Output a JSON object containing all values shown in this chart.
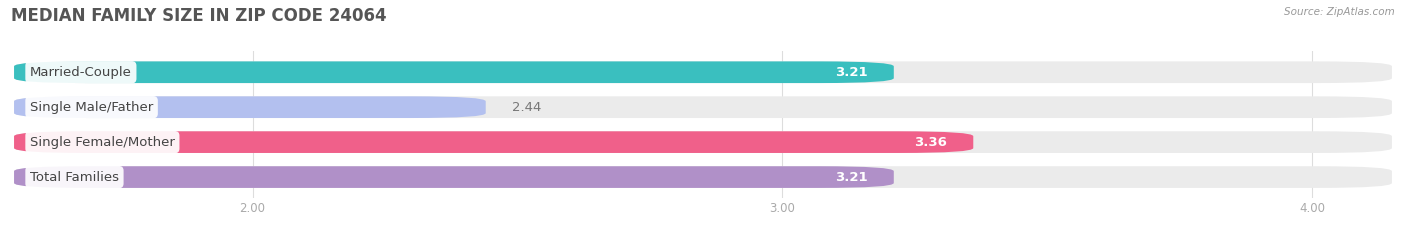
{
  "title": "MEDIAN FAMILY SIZE IN ZIP CODE 24064",
  "source": "Source: ZipAtlas.com",
  "categories": [
    "Married-Couple",
    "Single Male/Father",
    "Single Female/Mother",
    "Total Families"
  ],
  "values": [
    3.21,
    2.44,
    3.36,
    3.21
  ],
  "bar_colors": [
    "#3abfbf",
    "#b3c0ef",
    "#f0608a",
    "#b090c8"
  ],
  "xlim_left": 1.55,
  "xlim_right": 4.15,
  "xticks": [
    2.0,
    3.0,
    4.0
  ],
  "xtick_labels": [
    "2.00",
    "3.00",
    "4.00"
  ],
  "bar_height": 0.62,
  "bar_gap": 0.38,
  "background_color": "#ffffff",
  "bar_bg_color": "#ebebeb",
  "title_fontsize": 12,
  "label_fontsize": 9.5,
  "value_fontsize": 9.5,
  "title_color": "#555555",
  "source_color": "#999999",
  "tick_color": "#aaaaaa",
  "value_label_outside_color": "#777777",
  "value_label_inside_color": "#ffffff",
  "grid_color": "#dddddd"
}
